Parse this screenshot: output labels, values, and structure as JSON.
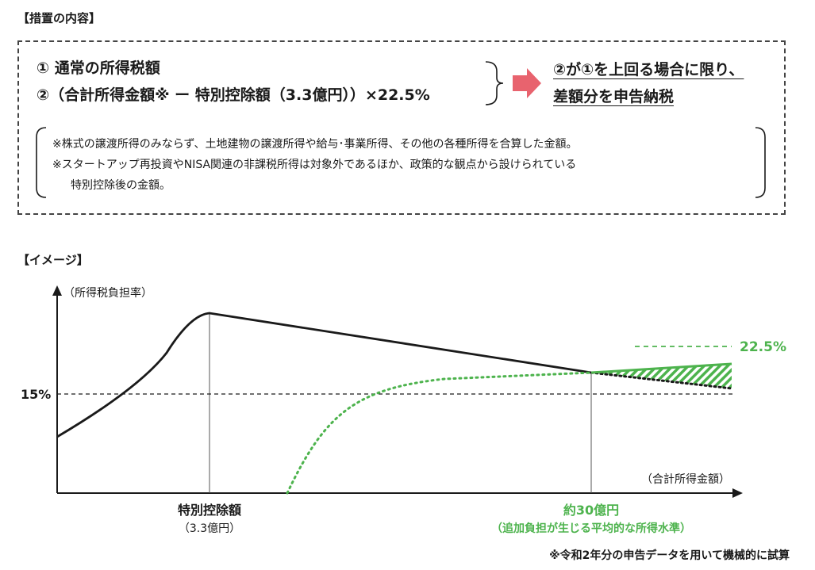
{
  "section1": {
    "heading": "【措置の内容】",
    "formula_line1": "① 通常の所得税額",
    "formula_line2": "②（合計所得金額※ ー 特別控除額（3.3億円））×22.5%",
    "result_line1": "②が①を上回る場合に限り、",
    "result_line2": "差額分を申告納税",
    "notes": [
      "※株式の譲渡所得のみならず、土地建物の譲渡所得や給与･事業所得、その他の各種所得を合算した金額。",
      "※スタートアップ再投資やNISA関連の非課税所得は対象外であるほか、政策的な観点から設けられている",
      "特別控除後の金額。"
    ],
    "arrow_color": "#e8636e"
  },
  "section2": {
    "heading": "【イメージ】",
    "footnote": "※令和2年分の申告データを用いて機械的に試算"
  },
  "chart_data": {
    "type": "line",
    "ylabel": "（所得税負担率）",
    "xlabel": "（合計所得金額）",
    "y_ticks": [
      "15%"
    ],
    "x_markers": [
      {
        "label": "特別控除額",
        "sublabel": "（3.3億円）"
      },
      {
        "label": "約30億円",
        "sublabel": "（追加負担が生じる平均的な所得水準）"
      }
    ],
    "series": [
      {
        "color": "#1a1a1a",
        "style": "solid"
      },
      {
        "color": "#4db34d",
        "style": "dotted"
      }
    ],
    "reference_line": {
      "label": "22.5%",
      "color": "#4db34d"
    },
    "hatch_color": "#4db34d",
    "grid": false,
    "legend": "none"
  }
}
